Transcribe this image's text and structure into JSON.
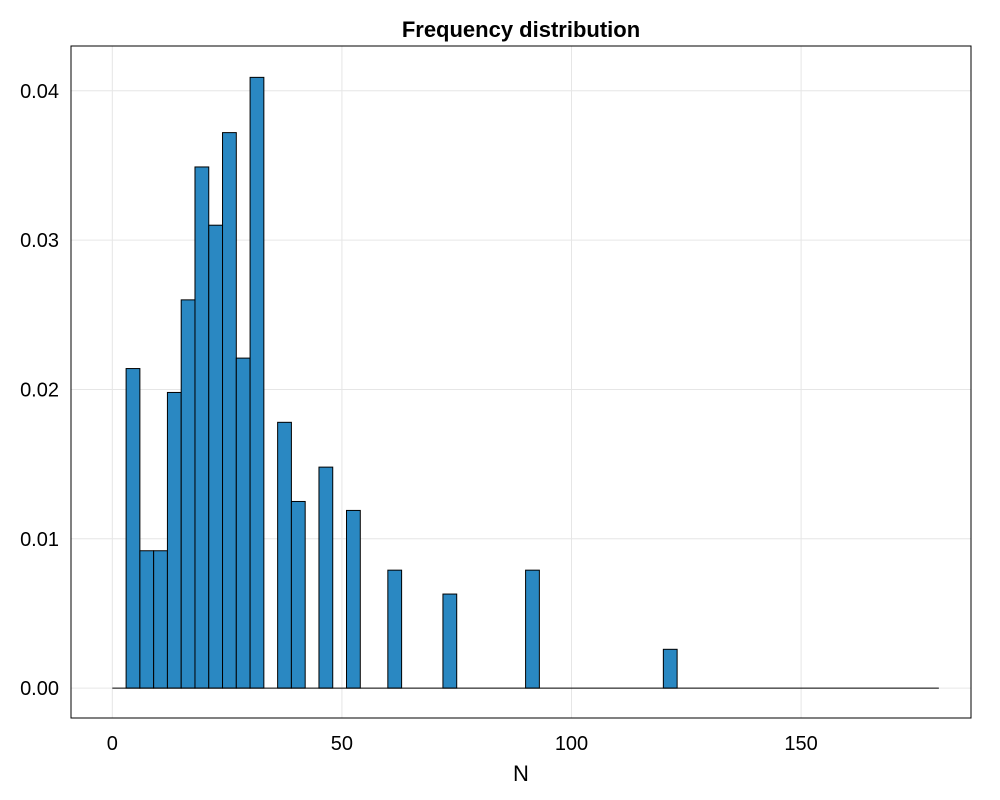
{
  "chart_data": {
    "type": "bar",
    "title": "Frequency distribution",
    "xlabel": "N",
    "ylabel": "",
    "xlim": [
      -9,
      187
    ],
    "ylim": [
      -0.002,
      0.043
    ],
    "xticks": [
      0,
      50,
      100,
      150
    ],
    "yticks": [
      0.0,
      0.01,
      0.02,
      0.03,
      0.04
    ],
    "ytick_labels": [
      "0.00",
      "0.01",
      "0.02",
      "0.03",
      "0.04"
    ],
    "grid": true,
    "bar_color": "#2a88c2",
    "baseline_range": [
      0,
      180
    ],
    "bin_width": 3,
    "bins": [
      {
        "x0": 3,
        "x1": 6,
        "value": 0.0214
      },
      {
        "x0": 6,
        "x1": 9,
        "value": 0.0092
      },
      {
        "x0": 9,
        "x1": 12,
        "value": 0.0092
      },
      {
        "x0": 12,
        "x1": 15,
        "value": 0.0198
      },
      {
        "x0": 15,
        "x1": 18,
        "value": 0.026
      },
      {
        "x0": 18,
        "x1": 21,
        "value": 0.0349
      },
      {
        "x0": 21,
        "x1": 24,
        "value": 0.031
      },
      {
        "x0": 24,
        "x1": 27,
        "value": 0.0372
      },
      {
        "x0": 27,
        "x1": 30,
        "value": 0.0221
      },
      {
        "x0": 30,
        "x1": 33,
        "value": 0.0409
      },
      {
        "x0": 36,
        "x1": 39,
        "value": 0.0178
      },
      {
        "x0": 39,
        "x1": 42,
        "value": 0.0125
      },
      {
        "x0": 45,
        "x1": 48,
        "value": 0.0148
      },
      {
        "x0": 51,
        "x1": 54,
        "value": 0.0119
      },
      {
        "x0": 60,
        "x1": 63,
        "value": 0.0079
      },
      {
        "x0": 72,
        "x1": 75,
        "value": 0.0063
      },
      {
        "x0": 90,
        "x1": 93,
        "value": 0.0079
      },
      {
        "x0": 120,
        "x1": 123,
        "value": 0.0026
      }
    ]
  }
}
